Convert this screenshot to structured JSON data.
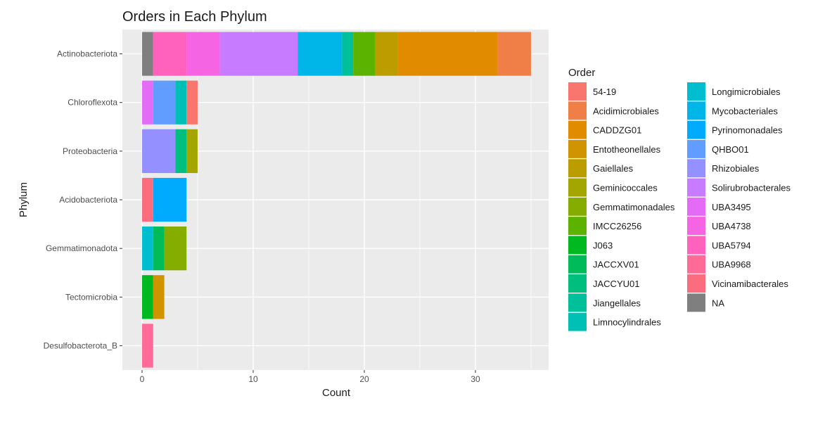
{
  "chart_data": {
    "type": "bar",
    "orientation": "horizontal",
    "stacked": true,
    "title": "Orders in Each Phylum",
    "xlabel": "Count",
    "ylabel": "Phylum",
    "xlim": [
      0,
      36.5
    ],
    "x_ticks": [
      0,
      10,
      20,
      30
    ],
    "grid": true,
    "legend_title": "Order",
    "legend_position": "right",
    "categories": [
      "Actinobacteriota",
      "Chloroflexota",
      "Proteobacteria",
      "Acidobacteriota",
      "Gemmatimonadota",
      "Tectomicrobia",
      "Desulfobacterota_B"
    ],
    "series": [
      {
        "name": "54-19",
        "color": "#F8766D"
      },
      {
        "name": "Acidimicrobiales",
        "color": "#EF7F46"
      },
      {
        "name": "CADDZG01",
        "color": "#E08B00"
      },
      {
        "name": "Entotheonellales",
        "color": "#CF9400"
      },
      {
        "name": "Gaiellales",
        "color": "#BB9D00"
      },
      {
        "name": "Geminicoccales",
        "color": "#A3A500"
      },
      {
        "name": "Gemmatimonadales",
        "color": "#85AD00"
      },
      {
        "name": "IMCC26256",
        "color": "#5BB300"
      },
      {
        "name": "J063",
        "color": "#00B81F"
      },
      {
        "name": "JACCXV01",
        "color": "#00BB59"
      },
      {
        "name": "JACCYU01",
        "color": "#00BE7D"
      },
      {
        "name": "Jiangellales",
        "color": "#00C09B"
      },
      {
        "name": "Limnocylindrales",
        "color": "#00C0B6"
      },
      {
        "name": "Longimicrobiales",
        "color": "#00BDD0"
      },
      {
        "name": "Mycobacteriales",
        "color": "#00B6E8"
      },
      {
        "name": "Pyrinomonadales",
        "color": "#00ABFD"
      },
      {
        "name": "QHBO01",
        "color": "#619CFF"
      },
      {
        "name": "Rhizobiales",
        "color": "#9590FF"
      },
      {
        "name": "Solirubrobacterales",
        "color": "#C77CFF"
      },
      {
        "name": "UBA3495",
        "color": "#E46BF6"
      },
      {
        "name": "UBA4738",
        "color": "#F564E3"
      },
      {
        "name": "UBA5794",
        "color": "#FF62BC"
      },
      {
        "name": "UBA9968",
        "color": "#FF6A98"
      },
      {
        "name": "Vicinamibacterales",
        "color": "#FB6D7E"
      },
      {
        "name": "NA",
        "color": "#7F7F7F"
      }
    ],
    "stacks": [
      {
        "phylum": "Actinobacteriota",
        "segments": [
          {
            "order": "NA",
            "value": 1
          },
          {
            "order": "UBA5794",
            "value": 3
          },
          {
            "order": "UBA4738",
            "value": 3
          },
          {
            "order": "Solirubrobacterales",
            "value": 7
          },
          {
            "order": "Mycobacteriales",
            "value": 4
          },
          {
            "order": "Jiangellales",
            "value": 1
          },
          {
            "order": "IMCC26256",
            "value": 2
          },
          {
            "order": "Gaiellales",
            "value": 2
          },
          {
            "order": "CADDZG01",
            "value": 9
          },
          {
            "order": "Acidimicrobiales",
            "value": 3
          }
        ]
      },
      {
        "phylum": "Chloroflexota",
        "segments": [
          {
            "order": "UBA3495",
            "value": 1
          },
          {
            "order": "QHBO01",
            "value": 2
          },
          {
            "order": "Limnocylindrales",
            "value": 1
          },
          {
            "order": "54-19",
            "value": 1
          }
        ]
      },
      {
        "phylum": "Proteobacteria",
        "segments": [
          {
            "order": "Rhizobiales",
            "value": 3
          },
          {
            "order": "JACCYU01",
            "value": 1
          },
          {
            "order": "Geminicoccales",
            "value": 1
          }
        ]
      },
      {
        "phylum": "Acidobacteriota",
        "segments": [
          {
            "order": "Vicinamibacterales",
            "value": 1
          },
          {
            "order": "Pyrinomonadales",
            "value": 3
          }
        ]
      },
      {
        "phylum": "Gemmatimonadota",
        "segments": [
          {
            "order": "Longimicrobiales",
            "value": 1
          },
          {
            "order": "JACCXV01",
            "value": 1
          },
          {
            "order": "Gemmatimonadales",
            "value": 2
          }
        ]
      },
      {
        "phylum": "Tectomicrobia",
        "segments": [
          {
            "order": "J063",
            "value": 1
          },
          {
            "order": "Entotheonellales",
            "value": 1
          }
        ]
      },
      {
        "phylum": "Desulfobacterota_B",
        "segments": [
          {
            "order": "UBA9968",
            "value": 1
          }
        ]
      }
    ]
  }
}
